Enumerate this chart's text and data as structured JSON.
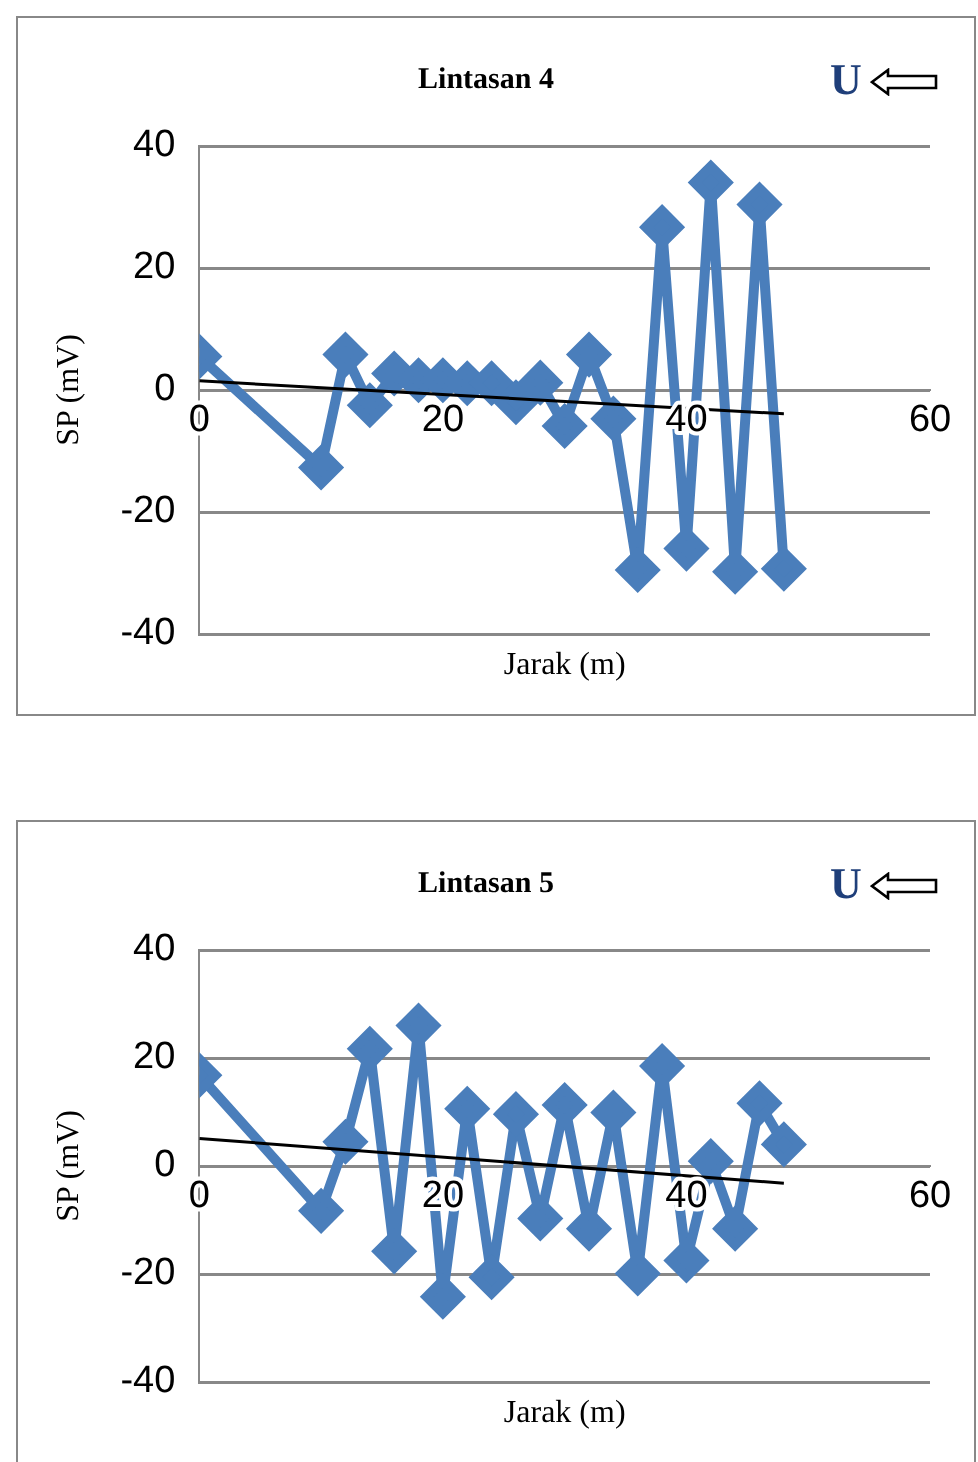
{
  "chart_data": [
    {
      "type": "line",
      "title": "Lintasan 4",
      "xlabel": "Jarak (m)",
      "ylabel": "SP (mV)",
      "annotations": [
        "U"
      ],
      "xlim": [
        0,
        60
      ],
      "xticks": [
        0,
        20,
        40,
        60
      ],
      "ylim": [
        -40,
        40
      ],
      "yticks": [
        -40,
        -20,
        0,
        20,
        40
      ],
      "grid": "y",
      "legend": false,
      "series": [
        {
          "type": "line",
          "color": "#4a7ebb",
          "marker": "diamond",
          "x": [
            0,
            10,
            12,
            14,
            16,
            18,
            20,
            22,
            24,
            26,
            28,
            30,
            32,
            34,
            36,
            38,
            40,
            42,
            44,
            46,
            48
          ],
          "values": [
            5.5,
            -12.7,
            5.8,
            -2.5,
            2.7,
            1.6,
            1.6,
            1.1,
            1.1,
            -2,
            1.2,
            -5.9,
            5.8,
            -4.7,
            -29.5,
            26.7,
            -26,
            34,
            -29.8,
            30.4,
            -29.3
          ]
        },
        {
          "type": "line",
          "color": "#000000",
          "marker": "none",
          "x": [
            0,
            48
          ],
          "values": [
            1.5,
            -3.9
          ]
        }
      ]
    },
    {
      "type": "line",
      "title": "Lintasan 5",
      "xlabel": "Jarak (m)",
      "ylabel": "SP (mV)",
      "annotations": [
        "U"
      ],
      "xlim": [
        0,
        60
      ],
      "xticks": [
        0,
        20,
        40,
        60
      ],
      "ylim": [
        -40,
        40
      ],
      "yticks": [
        -40,
        -20,
        0,
        20,
        40
      ],
      "grid": "y",
      "legend": false,
      "series": [
        {
          "type": "line",
          "color": "#4a7ebb",
          "marker": "diamond",
          "x": [
            0,
            10,
            12,
            14,
            16,
            18,
            20,
            22,
            24,
            26,
            28,
            30,
            32,
            34,
            36,
            38,
            40,
            42,
            44,
            46,
            48
          ],
          "values": [
            16.8,
            -8.3,
            4.5,
            21.7,
            -15.8,
            26,
            -24.2,
            10.6,
            -20.6,
            9.6,
            -9.7,
            11.3,
            -11.6,
            9.9,
            -19.9,
            18.5,
            -17.5,
            0.9,
            -11.6,
            11.6,
            4
          ]
        },
        {
          "type": "line",
          "color": "#000000",
          "marker": "none",
          "x": [
            0,
            48
          ],
          "values": [
            5.1,
            -3.2
          ]
        }
      ]
    }
  ]
}
